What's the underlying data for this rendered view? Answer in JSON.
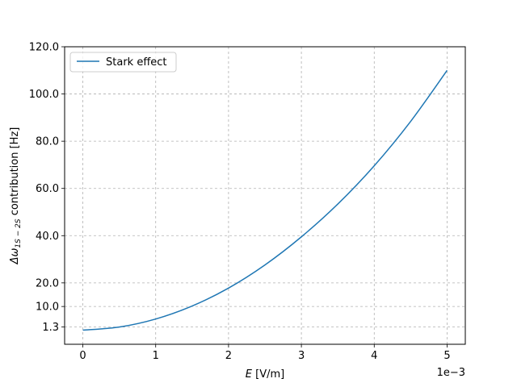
{
  "chart_data": {
    "type": "line",
    "xlabel_prefix": "E",
    "xlabel_suffix": " [V/m]",
    "ylabel_prefix": "Δω",
    "ylabel_sub": "1S − 2S",
    "ylabel_suffix": " contribution [Hz]",
    "offset_text": "1e−3",
    "xlim": [
      -0.25,
      5.25
    ],
    "ylim": [
      -6.0,
      120.0
    ],
    "xticks": [
      0,
      1,
      2,
      3,
      4,
      5
    ],
    "xtick_labels": [
      "0",
      "1",
      "2",
      "3",
      "4",
      "5"
    ],
    "yticks": [
      1.3,
      10.0,
      20.0,
      40.0,
      60.0,
      80.0,
      100.0,
      120.0
    ],
    "ytick_labels": [
      "1.3",
      "10.0",
      "20.0",
      "40.0",
      "60.0",
      "80.0",
      "100.0",
      "120.0"
    ],
    "grid": true,
    "legend_placement": "upper-left",
    "series": [
      {
        "name": "Stark effect",
        "color": "#1f77b4",
        "x": [
          0,
          0.5,
          1.0,
          1.5,
          2.0,
          2.5,
          3.0,
          3.5,
          4.0,
          4.5,
          5.0
        ],
        "y": [
          0.0,
          1.3,
          4.7,
          10.2,
          17.8,
          27.6,
          39.5,
          53.4,
          69.6,
          88.4,
          110.0
        ]
      }
    ]
  }
}
